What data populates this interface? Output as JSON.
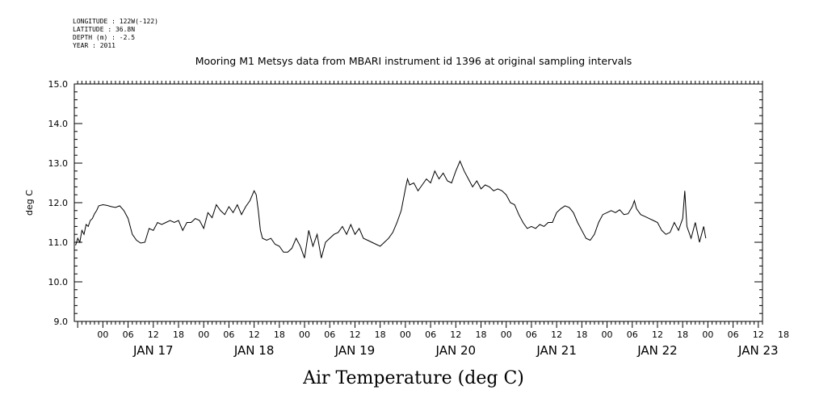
{
  "header": {
    "longitude": "LONGITUDE : 122W(-122)",
    "latitude": "LATITUDE : 36.8N",
    "depth": "DEPTH (m) : -2.5",
    "year": "YEAR : 2011"
  },
  "chart_data": {
    "type": "line",
    "title": "Mooring M1 Metsys data from MBARI instrument id 1396 at original sampling intervals",
    "ylabel": "deg C",
    "xlabel": "Air Temperature (deg C)",
    "ylim": [
      9.0,
      15.0
    ],
    "xlim_hours": [
      -6.8,
      157
    ],
    "yticks": [
      "9.0",
      "10.0",
      "11.0",
      "12.0",
      "13.0",
      "14.0",
      "15.0"
    ],
    "hour_tick_labels": [
      "00",
      "06",
      "12",
      "18",
      "00",
      "06",
      "12",
      "18",
      "00",
      "06",
      "12",
      "18",
      "00",
      "06",
      "12",
      "18",
      "00",
      "06",
      "12",
      "18",
      "00",
      "06",
      "12",
      "18",
      "00",
      "06",
      "12",
      "18"
    ],
    "day_labels": [
      "JAN 17",
      "JAN 18",
      "JAN 19",
      "JAN 20",
      "JAN 21",
      "JAN 22",
      "JAN 23"
    ],
    "grid": false,
    "series": [
      {
        "values": [
          [
            -6.5,
            10.92
          ],
          [
            -6.0,
            11.1
          ],
          [
            -5.5,
            11.0
          ],
          [
            -5.0,
            11.3
          ],
          [
            -4.5,
            11.2
          ],
          [
            -4.0,
            11.45
          ],
          [
            -3.5,
            11.4
          ],
          [
            -3.0,
            11.55
          ],
          [
            -2.5,
            11.6
          ],
          [
            -2.0,
            11.72
          ],
          [
            -1.5,
            11.8
          ],
          [
            -1.0,
            11.92
          ],
          [
            0,
            11.95
          ],
          [
            1,
            11.93
          ],
          [
            2,
            11.9
          ],
          [
            3,
            11.88
          ],
          [
            4,
            11.92
          ],
          [
            5,
            11.8
          ],
          [
            6,
            11.6
          ],
          [
            7,
            11.2
          ],
          [
            8,
            11.05
          ],
          [
            9,
            10.98
          ],
          [
            10,
            11.0
          ],
          [
            11,
            11.35
          ],
          [
            12,
            11.3
          ],
          [
            13,
            11.5
          ],
          [
            14,
            11.45
          ],
          [
            15,
            11.5
          ],
          [
            16,
            11.55
          ],
          [
            17,
            11.5
          ],
          [
            18,
            11.55
          ],
          [
            19,
            11.3
          ],
          [
            20,
            11.5
          ],
          [
            21,
            11.5
          ],
          [
            22,
            11.6
          ],
          [
            23,
            11.55
          ],
          [
            24,
            11.35
          ],
          [
            25,
            11.75
          ],
          [
            26,
            11.62
          ],
          [
            27,
            11.95
          ],
          [
            28,
            11.8
          ],
          [
            29,
            11.7
          ],
          [
            30,
            11.9
          ],
          [
            31,
            11.75
          ],
          [
            32,
            11.95
          ],
          [
            33,
            11.7
          ],
          [
            34,
            11.9
          ],
          [
            35,
            12.05
          ],
          [
            36,
            12.3
          ],
          [
            36.5,
            12.2
          ],
          [
            37,
            11.8
          ],
          [
            37.5,
            11.3
          ],
          [
            38,
            11.1
          ],
          [
            39,
            11.05
          ],
          [
            40,
            11.1
          ],
          [
            41,
            10.95
          ],
          [
            42,
            10.9
          ],
          [
            43,
            10.75
          ],
          [
            44,
            10.75
          ],
          [
            45,
            10.85
          ],
          [
            46,
            11.1
          ],
          [
            47,
            10.9
          ],
          [
            48,
            10.6
          ],
          [
            49,
            11.3
          ],
          [
            50,
            10.9
          ],
          [
            51,
            11.2
          ],
          [
            52,
            10.6
          ],
          [
            53,
            11.0
          ],
          [
            54,
            11.1
          ],
          [
            55,
            11.2
          ],
          [
            56,
            11.25
          ],
          [
            57,
            11.4
          ],
          [
            58,
            11.2
          ],
          [
            59,
            11.45
          ],
          [
            60,
            11.2
          ],
          [
            61,
            11.35
          ],
          [
            62,
            11.1
          ],
          [
            63,
            11.05
          ],
          [
            64,
            11.0
          ],
          [
            65,
            10.95
          ],
          [
            66,
            10.9
          ],
          [
            67,
            11.0
          ],
          [
            68,
            11.1
          ],
          [
            69,
            11.25
          ],
          [
            70,
            11.5
          ],
          [
            71,
            11.8
          ],
          [
            72,
            12.35
          ],
          [
            72.5,
            12.6
          ],
          [
            73,
            12.45
          ],
          [
            74,
            12.5
          ],
          [
            75,
            12.3
          ],
          [
            76,
            12.45
          ],
          [
            77,
            12.6
          ],
          [
            78,
            12.5
          ],
          [
            79,
            12.8
          ],
          [
            80,
            12.6
          ],
          [
            81,
            12.75
          ],
          [
            82,
            12.55
          ],
          [
            83,
            12.5
          ],
          [
            84,
            12.8
          ],
          [
            85,
            13.05
          ],
          [
            86,
            12.8
          ],
          [
            87,
            12.6
          ],
          [
            88,
            12.4
          ],
          [
            89,
            12.55
          ],
          [
            90,
            12.35
          ],
          [
            91,
            12.45
          ],
          [
            92,
            12.4
          ],
          [
            93,
            12.3
          ],
          [
            94,
            12.35
          ],
          [
            95,
            12.3
          ],
          [
            96,
            12.2
          ],
          [
            97,
            12.0
          ],
          [
            98,
            11.95
          ],
          [
            99,
            11.7
          ],
          [
            100,
            11.5
          ],
          [
            101,
            11.35
          ],
          [
            102,
            11.4
          ],
          [
            103,
            11.35
          ],
          [
            104,
            11.45
          ],
          [
            105,
            11.4
          ],
          [
            106,
            11.5
          ],
          [
            107,
            11.5
          ],
          [
            108,
            11.75
          ],
          [
            109,
            11.85
          ],
          [
            110,
            11.92
          ],
          [
            111,
            11.88
          ],
          [
            112,
            11.75
          ],
          [
            113,
            11.5
          ],
          [
            114,
            11.3
          ],
          [
            115,
            11.1
          ],
          [
            116,
            11.05
          ],
          [
            117,
            11.2
          ],
          [
            118,
            11.5
          ],
          [
            119,
            11.7
          ],
          [
            120,
            11.75
          ],
          [
            121,
            11.8
          ],
          [
            122,
            11.75
          ],
          [
            123,
            11.82
          ],
          [
            124,
            11.7
          ],
          [
            125,
            11.72
          ],
          [
            126,
            11.9
          ],
          [
            126.5,
            12.05
          ],
          [
            127,
            11.85
          ],
          [
            128,
            11.7
          ],
          [
            129,
            11.65
          ],
          [
            130,
            11.6
          ],
          [
            131,
            11.55
          ],
          [
            132,
            11.5
          ],
          [
            133,
            11.3
          ],
          [
            134,
            11.2
          ],
          [
            135,
            11.25
          ],
          [
            136,
            11.5
          ],
          [
            137,
            11.3
          ],
          [
            138,
            11.6
          ],
          [
            138.5,
            12.3
          ],
          [
            139,
            11.4
          ],
          [
            140,
            11.1
          ],
          [
            141,
            11.5
          ],
          [
            142,
            11.0
          ],
          [
            143,
            11.4
          ],
          [
            143.5,
            11.1
          ]
        ]
      }
    ]
  }
}
